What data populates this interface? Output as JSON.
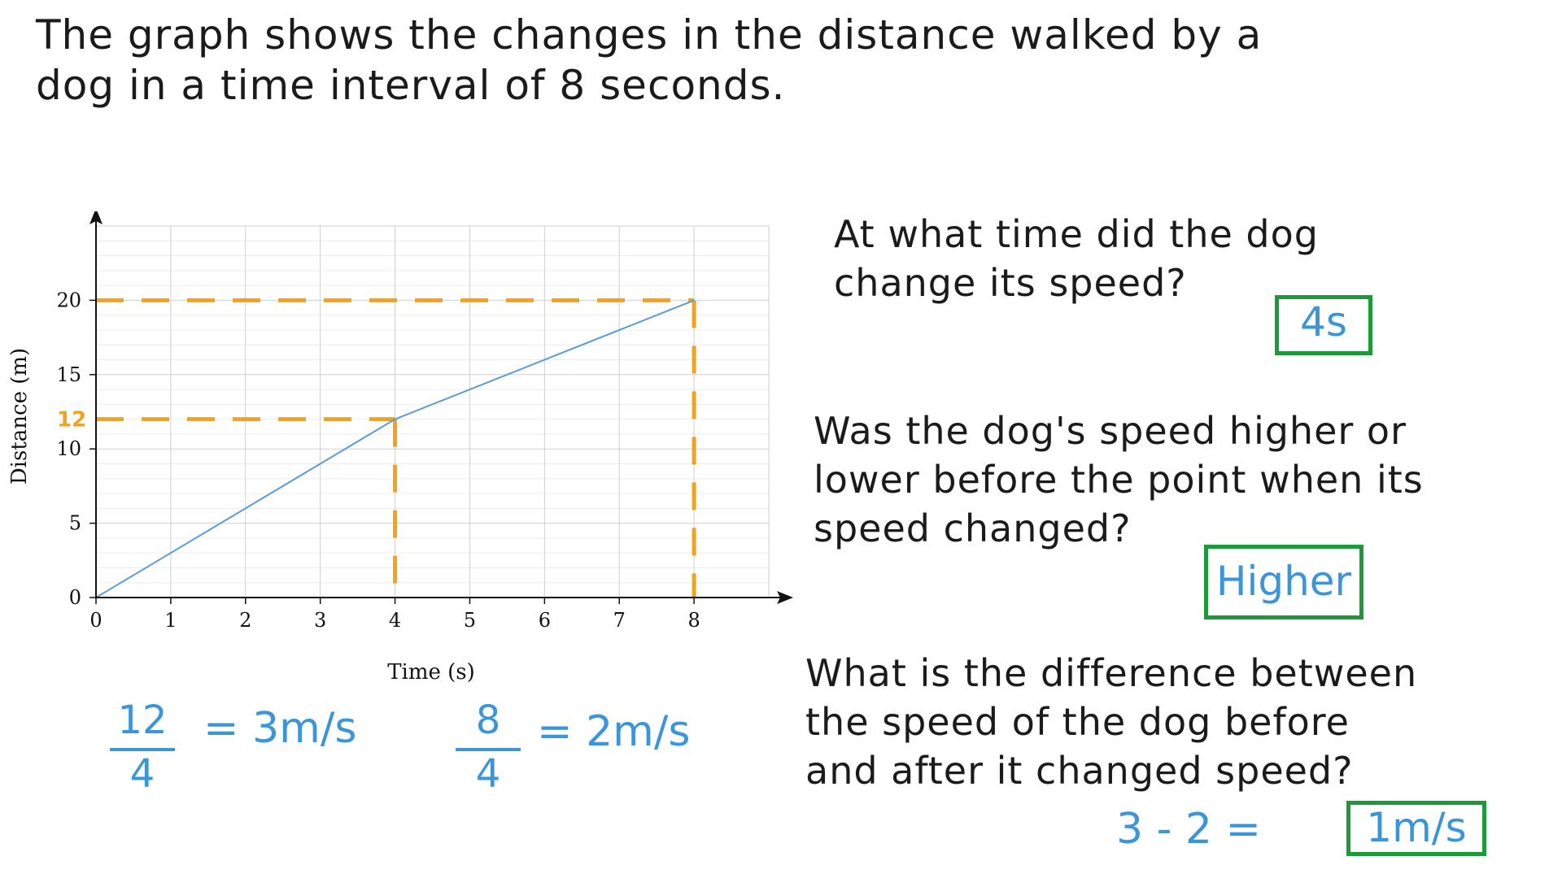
{
  "intro": {
    "line1": "The graph shows the changes in the distance walked by a",
    "line2": "dog in a time interval of 8 seconds."
  },
  "questions": [
    {
      "line1": "At what time did the dog",
      "line2": "change its speed?",
      "line3": "",
      "answer": "4s"
    },
    {
      "line1": "Was the dog's speed higher or",
      "line2": "lower before the point when its",
      "line3": "speed changed?",
      "answer": "Higher"
    },
    {
      "line1": "What is the difference between",
      "line2": "the speed of the dog before",
      "line3": "and after it changed speed?",
      "answer": "1m/s"
    }
  ],
  "calculation": "3 - 2 =",
  "working": {
    "frac1": {
      "num": "12",
      "den": "4",
      "result": "= 3m/s"
    },
    "frac2": {
      "num": "8",
      "den": "4",
      "result": "= 2m/s"
    }
  },
  "colors": {
    "line": "#5b9bd5",
    "dashes": "#f2a31b",
    "answer_box": "#1c9a3a",
    "answer_text": "#3a96d8",
    "grid": "#cfcfcf",
    "minor_grid": "#ececec"
  },
  "chart_data": {
    "type": "line",
    "title": "",
    "xlabel": "Time (s)",
    "ylabel": "Distance (m)",
    "xlim": [
      0,
      9
    ],
    "ylim": [
      0,
      25
    ],
    "x_ticks": [
      0,
      1,
      2,
      3,
      4,
      5,
      6,
      7,
      8
    ],
    "y_ticks": [
      0,
      5,
      10,
      15,
      20
    ],
    "grid": true,
    "series": [
      {
        "x": [
          0,
          4,
          8
        ],
        "y": [
          0,
          12,
          20
        ]
      }
    ],
    "annotations": {
      "label_12": "12",
      "horizontal_dashes": [
        12,
        20
      ],
      "vertical_dashes": [
        4,
        8
      ]
    }
  }
}
